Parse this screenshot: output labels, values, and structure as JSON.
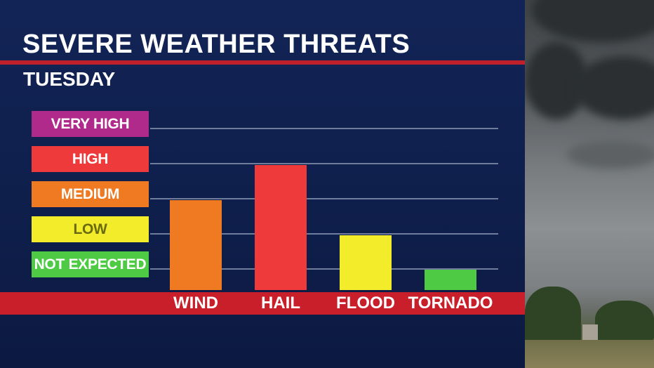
{
  "title": "SEVERE WEATHER THREATS",
  "subtitle": "TUESDAY",
  "colors": {
    "very_high": "#b02a8c",
    "high": "#ee3a3a",
    "medium": "#ef7a22",
    "low": "#f2ec2a",
    "not_expected": "#4fca44",
    "accent_red": "#c81f2a",
    "panel": "#0f1f4c"
  },
  "levels": [
    {
      "label": "VERY HIGH",
      "value": 4,
      "bg": "#b02a8c",
      "fg": "#ffffff"
    },
    {
      "label": "HIGH",
      "value": 3,
      "bg": "#ee3a3a",
      "fg": "#ffffff"
    },
    {
      "label": "MEDIUM",
      "value": 2,
      "bg": "#ef7a22",
      "fg": "#ffffff"
    },
    {
      "label": "LOW",
      "value": 1,
      "bg": "#f2ec2a",
      "fg": "#6a6a10"
    },
    {
      "label": "NOT EXPECTED",
      "value": 0,
      "bg": "#4fca44",
      "fg": "#ffffff"
    }
  ],
  "chart_data": {
    "type": "bar",
    "title": "SEVERE WEATHER THREATS",
    "subtitle": "TUESDAY",
    "categories": [
      "WIND",
      "HAIL",
      "FLOOD",
      "TORNADO"
    ],
    "values": [
      2,
      3,
      1,
      0
    ],
    "value_labels": [
      "MEDIUM",
      "HIGH",
      "LOW",
      "NOT EXPECTED"
    ],
    "colors": [
      "#ef7a22",
      "#ee3a3a",
      "#f2ec2a",
      "#4fca44"
    ],
    "ylim": [
      0,
      4
    ],
    "y_tick_labels": [
      "NOT EXPECTED",
      "LOW",
      "MEDIUM",
      "HIGH",
      "VERY HIGH"
    ],
    "grid": true,
    "legend": "none"
  }
}
